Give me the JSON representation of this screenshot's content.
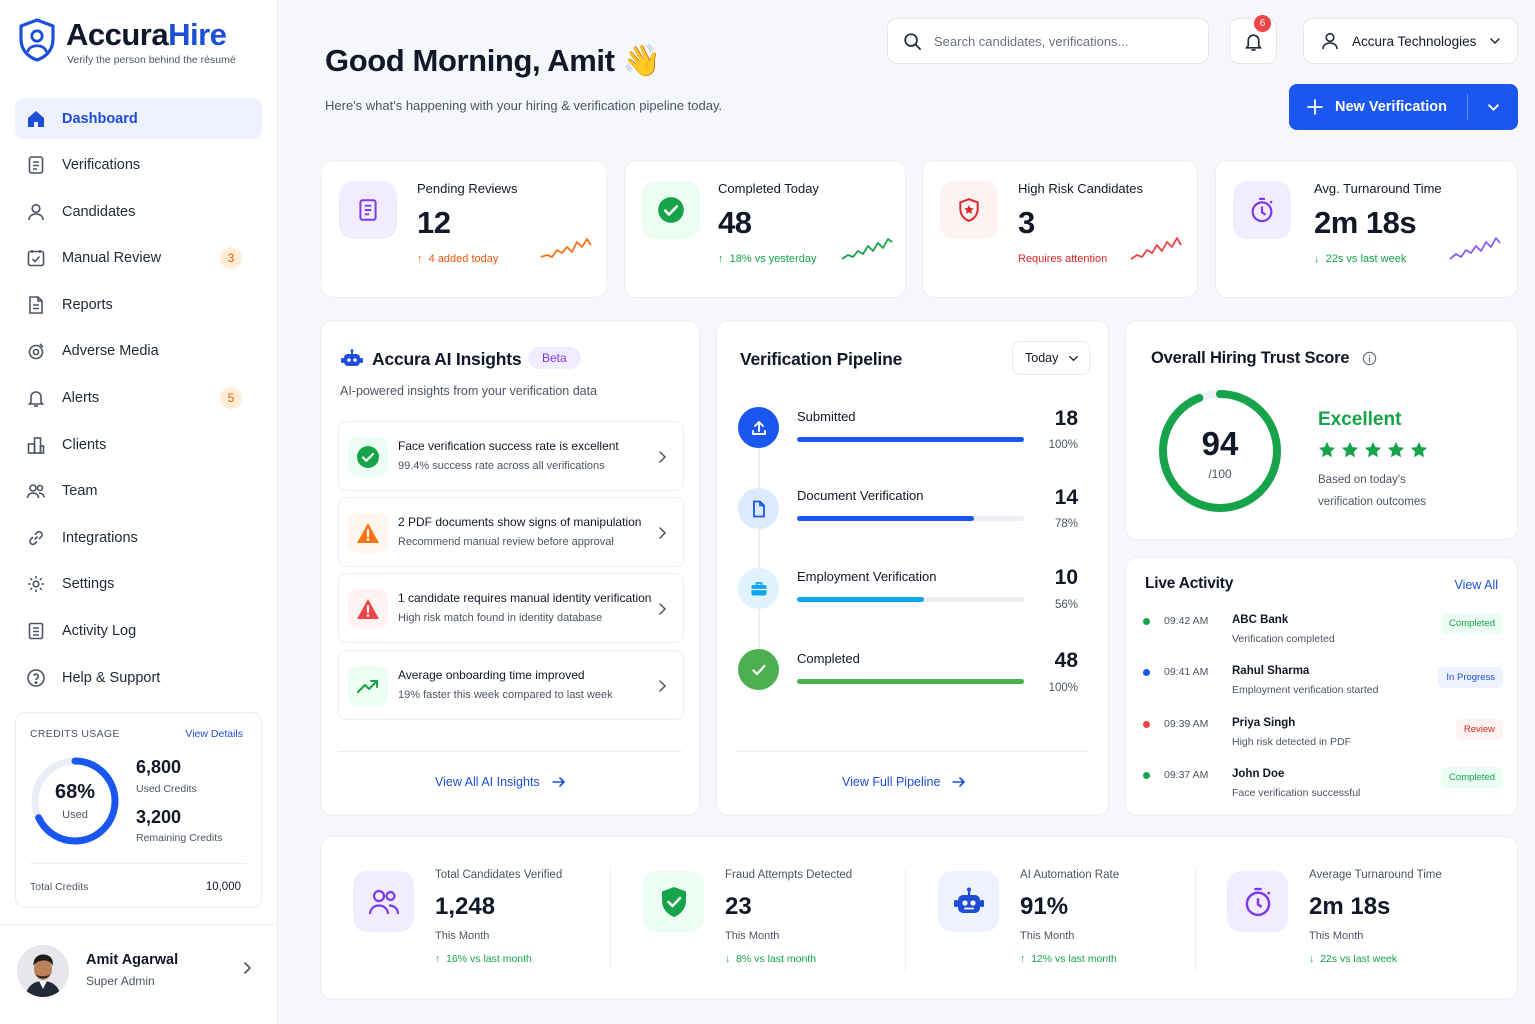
{
  "brand": {
    "name_a": "Accura",
    "name_b": "Hire",
    "tagline": "Verify the person behind the résumé",
    "blue": "#1d4ed8"
  },
  "nav": [
    {
      "label": "Dashboard",
      "icon": "home-icon",
      "active": true
    },
    {
      "label": "Verifications",
      "icon": "document-icon"
    },
    {
      "label": "Candidates",
      "icon": "user-icon"
    },
    {
      "label": "Manual Review",
      "icon": "review-icon",
      "badge": "3"
    },
    {
      "label": "Reports",
      "icon": "report-icon"
    },
    {
      "label": "Adverse Media",
      "icon": "media-icon"
    },
    {
      "label": "Alerts",
      "icon": "bell-icon",
      "badge": "5"
    },
    {
      "label": "Clients",
      "icon": "building-icon"
    },
    {
      "label": "Team",
      "icon": "team-icon"
    },
    {
      "label": "Integrations",
      "icon": "link-icon"
    },
    {
      "label": "Settings",
      "icon": "gear-icon"
    },
    {
      "label": "Activity Log",
      "icon": "log-icon"
    },
    {
      "label": "Help & Support",
      "icon": "help-icon"
    }
  ],
  "credits": {
    "title": "CREDITS USAGE",
    "link": "View Details",
    "percent": "68%",
    "percent_value": 68,
    "percent_label": "Used",
    "used": "6,800",
    "used_label": "Used Credits",
    "remaining": "3,200",
    "remaining_label": "Remaining Credits",
    "total_label": "Total Credits",
    "total": "10,000"
  },
  "user": {
    "name": "Amit Agarwal",
    "role": "Super Admin"
  },
  "header": {
    "greeting": "Good Morning, Amit",
    "wave": "👋",
    "subtitle": "Here's what's happening with your hiring & verification pipeline today.",
    "search_placeholder": "Search candidates, verifications...",
    "notifications": "6",
    "org": "Accura Technologies",
    "new_button": "New Verification"
  },
  "stats": [
    {
      "title": "Pending Reviews",
      "value": "12",
      "delta": "4 added today",
      "arrow": "↑",
      "color": "#ea580c",
      "icon": "clipboard-icon"
    },
    {
      "title": "Completed Today",
      "value": "48",
      "delta": "18% vs yesterday",
      "arrow": "↑",
      "color": "#16a34a",
      "icon": "check-circle-icon"
    },
    {
      "title": "High Risk Candidates",
      "value": "3",
      "delta": "Requires attention",
      "arrow": "",
      "color": "#dc2626",
      "icon": "shield-alert-icon"
    },
    {
      "title": "Avg. Turnaround Time",
      "value": "2m 18s",
      "delta": "22s vs last week",
      "arrow": "↓",
      "color": "#16a34a",
      "icon": "stopwatch-icon"
    }
  ],
  "insights": {
    "title": "Accura AI Insights",
    "badge": "Beta",
    "subtitle": "AI-powered insights from your verification data",
    "items": [
      {
        "title": "Face verification success rate is excellent",
        "desc": "99.4% success rate across all verifications",
        "icon": "check-circle-icon"
      },
      {
        "title": "2 PDF documents show signs of manipulation",
        "desc": "Recommend manual review before approval",
        "icon": "warning-icon"
      },
      {
        "title": "1 candidate requires manual identity verification",
        "desc": "High risk match found in identity database",
        "icon": "alert-icon"
      },
      {
        "title": "Average onboarding time improved",
        "desc": "19% faster this week compared to last week",
        "icon": "trend-up-icon"
      }
    ],
    "link": "View All AI Insights"
  },
  "pipeline": {
    "title": "Verification Pipeline",
    "period": "Today",
    "steps": [
      {
        "name": "Submitted",
        "value": "18",
        "pct": "100%",
        "fill": 100,
        "color": "#1a56f0",
        "icon": "upload-icon"
      },
      {
        "name": "Document Verification",
        "value": "14",
        "pct": "78%",
        "fill": 78,
        "color": "#1a56f0",
        "icon": "file-icon"
      },
      {
        "name": "Employment Verification",
        "value": "10",
        "pct": "56%",
        "fill": 56,
        "color": "#0ea5e9",
        "icon": "briefcase-icon"
      },
      {
        "name": "Completed",
        "value": "48",
        "pct": "100%",
        "fill": 100,
        "color": "#4caf50",
        "icon": "check-icon"
      }
    ],
    "link": "View Full Pipeline"
  },
  "trust": {
    "title": "Overall Hiring Trust Score",
    "score": "94",
    "score_value": 94,
    "of": "/100",
    "label": "Excellent",
    "stars": 5,
    "desc": "Based on today's verification outcomes"
  },
  "activity": {
    "title": "Live Activity",
    "link": "View All",
    "items": [
      {
        "time": "09:42 AM",
        "who": "ABC Bank",
        "what": "Verification completed",
        "status": "Completed",
        "dot": "#16a34a",
        "fg": "#16a34a",
        "bg": "#ecfdf3"
      },
      {
        "time": "09:41 AM",
        "who": "Rahul Sharma",
        "what": "Employment verification started",
        "status": "In Progress",
        "dot": "#1a56f0",
        "fg": "#1d4ed8",
        "bg": "#eef2ff"
      },
      {
        "time": "09:39 AM",
        "who": "Priya Singh",
        "what": "High risk detected in PDF",
        "status": "Review",
        "dot": "#ef4444",
        "fg": "#dc2626",
        "bg": "#fef2f2"
      },
      {
        "time": "09:37 AM",
        "who": "John Doe",
        "what": "Face verification successful",
        "status": "Completed",
        "dot": "#16a34a",
        "fg": "#16a34a",
        "bg": "#ecfdf3"
      }
    ]
  },
  "kpis": [
    {
      "title": "Total Candidates Verified",
      "value": "1,248",
      "period": "This Month",
      "delta": "16% vs last month",
      "arrow": "↑",
      "icon": "users-icon"
    },
    {
      "title": "Fraud Attempts Detected",
      "value": "23",
      "period": "This Month",
      "delta": "8% vs last month",
      "arrow": "↓",
      "icon": "shield-check-icon"
    },
    {
      "title": "AI Automation Rate",
      "value": "91%",
      "period": "This Month",
      "delta": "12% vs last month",
      "arrow": "↑",
      "icon": "robot-icon"
    },
    {
      "title": "Average Turnaround Time",
      "value": "2m 18s",
      "period": "This Month",
      "delta": "22s vs last week",
      "arrow": "↓",
      "icon": "stopwatch-icon"
    }
  ]
}
